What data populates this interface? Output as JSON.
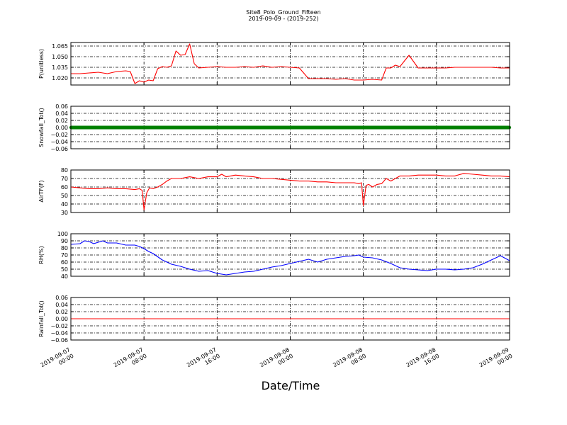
{
  "figure": {
    "title": "Site8_Polo_Ground_Fifteen",
    "subtitle": "2019-09-09 - (2019-252)",
    "xlabel": "Date/Time"
  },
  "chart_data": [
    {
      "type": "line",
      "ylabel": "P(unitless)",
      "ylim": [
        1.01,
        1.07
      ],
      "yticks": [
        1.02,
        1.035,
        1.05,
        1.065
      ],
      "ytick_labels": [
        "1.020",
        "1.035",
        "1.050",
        "1.065"
      ],
      "grid": true,
      "x_unit": "hours since 2019-09-07 00:00",
      "xlim": [
        0,
        48
      ],
      "series": [
        {
          "color": "#ff0000",
          "x": [
            0,
            1,
            2,
            3,
            4,
            5,
            6,
            6.5,
            7,
            7.5,
            8,
            8.5,
            9,
            9.5,
            10,
            10.5,
            11,
            11.5,
            12,
            12.5,
            13,
            13.5,
            14,
            15,
            16,
            17,
            18,
            19,
            20,
            21,
            22,
            23,
            24,
            25,
            26,
            27,
            28,
            29,
            30,
            31,
            32,
            33,
            34,
            34.5,
            35,
            35.5,
            36,
            37,
            38,
            39,
            40,
            41,
            42,
            43,
            44,
            45,
            46,
            47,
            48
          ],
          "values": [
            1.026,
            1.026,
            1.027,
            1.028,
            1.026,
            1.029,
            1.03,
            1.029,
            1.012,
            1.016,
            1.014,
            1.017,
            1.016,
            1.033,
            1.036,
            1.035,
            1.037,
            1.058,
            1.052,
            1.053,
            1.068,
            1.04,
            1.034,
            1.035,
            1.036,
            1.035,
            1.035,
            1.036,
            1.035,
            1.037,
            1.035,
            1.036,
            1.035,
            1.034,
            1.019,
            1.019,
            1.019,
            1.018,
            1.019,
            1.017,
            1.017,
            1.018,
            1.017,
            1.034,
            1.034,
            1.038,
            1.036,
            1.052,
            1.034,
            1.034,
            1.034,
            1.034,
            1.035,
            1.035,
            1.035,
            1.035,
            1.035,
            1.034,
            1.034
          ]
        }
      ]
    },
    {
      "type": "line",
      "ylabel": "Snowfall_Tot()",
      "ylim": [
        -0.06,
        0.06
      ],
      "yticks": [
        -0.06,
        -0.04,
        -0.02,
        0.0,
        0.02,
        0.04,
        0.06
      ],
      "ytick_labels": [
        "−0.06",
        "−0.04",
        "−0.02",
        "0.00",
        "0.02",
        "0.04",
        "0.06"
      ],
      "grid": true,
      "x_unit": "hours since 2019-09-07 00:00",
      "xlim": [
        0,
        48
      ],
      "series": [
        {
          "color": "#008000",
          "style": "markers",
          "x": [
            0,
            48
          ],
          "values": [
            0,
            0
          ]
        }
      ]
    },
    {
      "type": "line",
      "ylabel": "AirTF(F)",
      "ylim": [
        30,
        80
      ],
      "yticks": [
        30,
        40,
        50,
        60,
        70,
        80
      ],
      "ytick_labels": [
        "30",
        "40",
        "50",
        "60",
        "70",
        "80"
      ],
      "grid": true,
      "x_unit": "hours since 2019-09-07 00:00",
      "xlim": [
        0,
        48
      ],
      "series": [
        {
          "color": "#ff0000",
          "x": [
            0,
            1,
            2,
            3,
            4,
            5,
            6,
            7,
            7.5,
            7.8,
            8,
            8.3,
            8.6,
            9,
            9.5,
            10,
            10.5,
            11,
            12,
            13,
            14,
            15,
            16,
            16.5,
            17,
            18,
            19,
            20,
            21,
            22,
            23,
            24,
            25,
            26,
            27,
            28,
            29,
            30,
            31,
            31.5,
            31.8,
            32,
            32.3,
            32.6,
            33,
            33.5,
            34,
            34.5,
            35,
            36,
            37,
            38,
            39,
            40,
            41,
            42,
            43,
            44,
            45,
            46,
            47,
            48
          ],
          "values": [
            60,
            59,
            58,
            58,
            59,
            58,
            58,
            57,
            58,
            56,
            33,
            53,
            59,
            58,
            60,
            63,
            67,
            70,
            70,
            72,
            70,
            72,
            72,
            75,
            72,
            74,
            73,
            72,
            70,
            70,
            69,
            68,
            67,
            67,
            66,
            66,
            65,
            65,
            65,
            64,
            65,
            38,
            62,
            63,
            60,
            63,
            64,
            70,
            67,
            73,
            73,
            74,
            74,
            74,
            73,
            73,
            76,
            75,
            74,
            73,
            73,
            72
          ]
        }
      ]
    },
    {
      "type": "line",
      "ylabel": "RH(%)",
      "ylim": [
        40,
        100
      ],
      "yticks": [
        40,
        50,
        60,
        70,
        80,
        90,
        100
      ],
      "ytick_labels": [
        "40",
        "50",
        "60",
        "70",
        "80",
        "90",
        "100"
      ],
      "grid": true,
      "x_unit": "hours since 2019-09-07 00:00",
      "xlim": [
        0,
        48
      ],
      "series": [
        {
          "color": "#0000ff",
          "x": [
            0,
            1,
            1.5,
            2,
            2.5,
            3,
            3.5,
            4,
            5,
            6,
            7,
            7.5,
            8,
            8.5,
            9,
            10,
            11,
            12,
            13,
            14,
            15,
            16,
            17,
            18,
            19,
            20,
            21,
            22,
            23,
            24,
            25,
            26,
            26.5,
            27,
            28,
            29,
            30,
            31,
            31.5,
            32,
            33,
            34,
            35,
            36,
            37,
            38,
            39,
            40,
            41,
            42,
            43,
            44,
            45,
            46,
            47,
            48
          ],
          "values": [
            85,
            86,
            90,
            89,
            86,
            88,
            90,
            87,
            87,
            84,
            84,
            82,
            79,
            75,
            72,
            63,
            57,
            54,
            50,
            47,
            48,
            44,
            42,
            44,
            46,
            47,
            50,
            53,
            55,
            58,
            61,
            64,
            62,
            60,
            64,
            66,
            68,
            69,
            70,
            67,
            66,
            63,
            58,
            52,
            50,
            49,
            48,
            50,
            50,
            49,
            50,
            52,
            57,
            63,
            69,
            62
          ]
        }
      ]
    },
    {
      "type": "line",
      "ylabel": "Rainfall_Tot()",
      "ylim": [
        -0.06,
        0.06
      ],
      "yticks": [
        -0.06,
        -0.04,
        -0.02,
        0.0,
        0.02,
        0.04,
        0.06
      ],
      "ytick_labels": [
        "−0.06",
        "−0.04",
        "−0.02",
        "0.00",
        "0.02",
        "0.04",
        "0.06"
      ],
      "grid": true,
      "x_unit": "hours since 2019-09-07 00:00",
      "xlim": [
        0,
        48
      ],
      "x_ticks": [
        {
          "hour": 0,
          "line1": "2019-09-07",
          "line2": "00:00"
        },
        {
          "hour": 8,
          "line1": "2019-09-07",
          "line2": "08:00"
        },
        {
          "hour": 16,
          "line1": "2019-09-07",
          "line2": "16:00"
        },
        {
          "hour": 24,
          "line1": "2019-09-08",
          "line2": "00:00"
        },
        {
          "hour": 32,
          "line1": "2019-09-08",
          "line2": "08:00"
        },
        {
          "hour": 40,
          "line1": "2019-09-08",
          "line2": "16:00"
        },
        {
          "hour": 48,
          "line1": "2019-09-09",
          "line2": "00:00"
        }
      ],
      "series": [
        {
          "color": "#ff0000",
          "x": [
            0,
            48
          ],
          "values": [
            0,
            0
          ]
        }
      ]
    }
  ]
}
